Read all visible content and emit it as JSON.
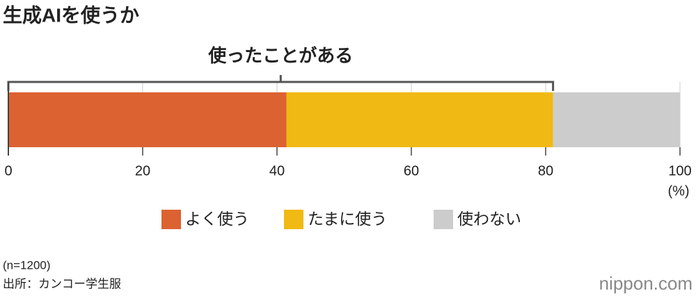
{
  "chart_data": {
    "type": "bar",
    "orientation": "horizontal",
    "stacked": true,
    "title": "生成AIを使うか",
    "annotation": "使ったことがある",
    "series": [
      {
        "name": "よく使う",
        "color": "#dc6232",
        "values": [
          41.4
        ]
      },
      {
        "name": "たまに使う",
        "color": "#f0b914",
        "values": [
          39.7
        ]
      },
      {
        "name": "使わない",
        "color": "#cccccc",
        "values": [
          18.9
        ]
      }
    ],
    "xlim": [
      0,
      100
    ],
    "xticks": [
      0,
      20,
      40,
      60,
      80,
      100
    ],
    "x_unit": "(%)",
    "grid": true,
    "note": "(n=1200)",
    "source": "出所：カンコー学生服",
    "logo": "nippon.com"
  }
}
